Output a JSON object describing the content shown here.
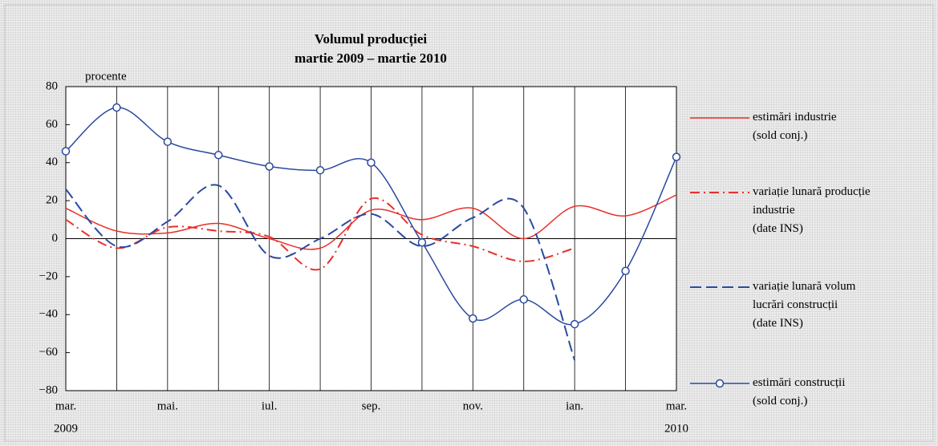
{
  "chart_data": {
    "type": "line",
    "title": "Volumul producției",
    "subtitle": "martie 2009 – martie 2010",
    "y_unit": "procente",
    "categories": [
      "mar.",
      null,
      "mai.",
      null,
      "iul.",
      null,
      "sep.",
      null,
      "nov.",
      null,
      "ian.",
      null,
      "mar."
    ],
    "category_years": [
      "2009",
      null,
      null,
      null,
      null,
      null,
      null,
      null,
      null,
      null,
      null,
      null,
      "2010"
    ],
    "ylim": [
      -80,
      80
    ],
    "yticks": [
      {
        "value": -80,
        "label": "−80"
      },
      {
        "value": -60,
        "label": "−60"
      },
      {
        "value": -40,
        "label": "−40"
      },
      {
        "value": -20,
        "label": "−20"
      },
      0,
      20,
      40,
      60,
      80
    ],
    "series": [
      {
        "name": "estimări industrie\n(sold conj.)",
        "color": "#e8302a",
        "line_style": "solid",
        "values": [
          16,
          4,
          3,
          8,
          0,
          -5,
          15,
          10,
          16,
          0,
          17,
          12,
          23
        ]
      },
      {
        "name": "variație lunară producție\nindustrie\n(date INS)",
        "color": "#e8302a",
        "line_style": "dashdot",
        "values": [
          10,
          -5,
          6,
          4,
          1,
          -16,
          21,
          2,
          -4,
          -12,
          -5,
          null,
          null
        ]
      },
      {
        "name": "variație lunară volum\nlucrări construcții\n(date INS)",
        "color": "#2b4aa0",
        "line_style": "dashed",
        "values": [
          26,
          -4,
          9,
          28,
          -9,
          0,
          13,
          -4,
          11,
          16,
          -64,
          null,
          null
        ]
      },
      {
        "name": "estimări construcții\n(sold conj.)",
        "color": "#2b4aa0",
        "line_style": "solid",
        "marker": "circle",
        "values": [
          46,
          69,
          51,
          44,
          38,
          36,
          40,
          -2,
          -42,
          -32,
          -45,
          -17,
          43
        ]
      }
    ]
  }
}
